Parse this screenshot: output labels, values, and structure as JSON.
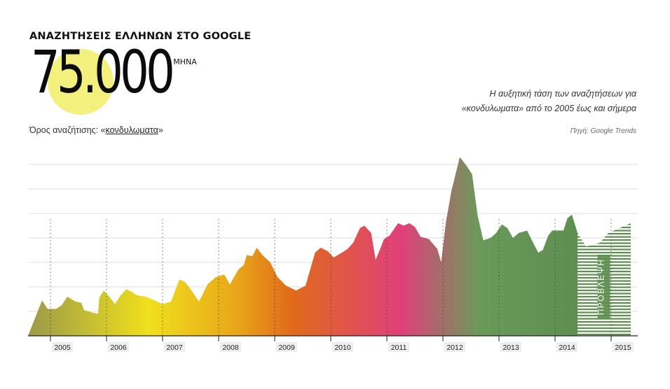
{
  "header": {
    "title": "ΑΝΑΖΗΤΗΣΕΙΣ ΕΛΛΗΝΩΝ ΣΤΟ GOOGLE",
    "big_number": "75.000",
    "unit": "/ ΜΗΝΑ",
    "search_prefix": "Όρος αναζήτισης: «",
    "search_term": "κονδυλωματα",
    "search_suffix": "»"
  },
  "description": {
    "line1": "Η αυξητική τάση των αναζητήσεων για",
    "line2": "«κονδυλωματα» από το 2005 έως και σήμερα",
    "source": "Πηγή: Google Trends"
  },
  "chart_data": {
    "type": "area",
    "x_unit": "year",
    "y_unit": "relative search interest",
    "ylim": [
      0,
      100
    ],
    "grid": true,
    "x_ticks": [
      "2005",
      "2006",
      "2007",
      "2008",
      "2009",
      "2010",
      "2011",
      "2012",
      "2013",
      "2014",
      "2015"
    ],
    "forecast_label": "ΠΡΟΒΛΕΨΗ",
    "forecast_start": 2014.4,
    "series": [
      {
        "values": [
          [
            2004.6,
            0
          ],
          [
            2004.85,
            14.5
          ],
          [
            2004.95,
            11
          ],
          [
            2005.1,
            11
          ],
          [
            2005.2,
            12.5
          ],
          [
            2005.3,
            16
          ],
          [
            2005.45,
            14
          ],
          [
            2005.55,
            13.5
          ],
          [
            2005.6,
            10.5
          ],
          [
            2005.75,
            9.5
          ],
          [
            2005.85,
            9
          ],
          [
            2005.87,
            15.5
          ],
          [
            2005.95,
            18.5
          ],
          [
            2006.05,
            16
          ],
          [
            2006.15,
            13
          ],
          [
            2006.25,
            16.5
          ],
          [
            2006.35,
            19
          ],
          [
            2006.45,
            18
          ],
          [
            2006.55,
            16.5
          ],
          [
            2006.7,
            16
          ],
          [
            2006.85,
            14.5
          ],
          [
            2007.0,
            13
          ],
          [
            2007.15,
            14
          ],
          [
            2007.3,
            23
          ],
          [
            2007.4,
            22
          ],
          [
            2007.5,
            19
          ],
          [
            2007.65,
            14
          ],
          [
            2007.8,
            21
          ],
          [
            2007.95,
            24
          ],
          [
            2008.1,
            25
          ],
          [
            2008.2,
            21
          ],
          [
            2008.35,
            27
          ],
          [
            2008.45,
            29
          ],
          [
            2008.5,
            33
          ],
          [
            2008.6,
            32.5
          ],
          [
            2008.68,
            36
          ],
          [
            2008.78,
            33
          ],
          [
            2008.92,
            30
          ],
          [
            2009.05,
            24
          ],
          [
            2009.2,
            20.5
          ],
          [
            2009.38,
            18.5
          ],
          [
            2009.55,
            20.5
          ],
          [
            2009.72,
            34
          ],
          [
            2009.82,
            36
          ],
          [
            2009.95,
            34.5
          ],
          [
            2010.05,
            32
          ],
          [
            2010.2,
            34
          ],
          [
            2010.3,
            35.5
          ],
          [
            2010.4,
            38
          ],
          [
            2010.52,
            44
          ],
          [
            2010.6,
            45
          ],
          [
            2010.72,
            42
          ],
          [
            2010.8,
            31
          ],
          [
            2010.95,
            39.5
          ],
          [
            2011.05,
            41
          ],
          [
            2011.2,
            46
          ],
          [
            2011.3,
            45
          ],
          [
            2011.4,
            46
          ],
          [
            2011.5,
            44.5
          ],
          [
            2011.6,
            40.5
          ],
          [
            2011.75,
            39.5
          ],
          [
            2011.9,
            35.5
          ],
          [
            2011.97,
            30
          ],
          [
            2012.05,
            46
          ],
          [
            2012.15,
            59
          ],
          [
            2012.3,
            73
          ],
          [
            2012.42,
            69.5
          ],
          [
            2012.52,
            66
          ],
          [
            2012.62,
            49
          ],
          [
            2012.72,
            39
          ],
          [
            2012.85,
            40
          ],
          [
            2012.95,
            42
          ],
          [
            2013.05,
            45.5
          ],
          [
            2013.15,
            44
          ],
          [
            2013.25,
            40
          ],
          [
            2013.35,
            42
          ],
          [
            2013.5,
            43
          ],
          [
            2013.62,
            37.5
          ],
          [
            2013.7,
            34
          ],
          [
            2013.78,
            35
          ],
          [
            2013.88,
            41
          ],
          [
            2013.95,
            43
          ],
          [
            2014.05,
            43
          ],
          [
            2014.15,
            43
          ],
          [
            2014.22,
            48
          ],
          [
            2014.3,
            49.5
          ],
          [
            2014.4,
            42
          ],
          [
            2014.55,
            36.5
          ],
          [
            2014.65,
            37
          ],
          [
            2014.8,
            38
          ],
          [
            2014.95,
            42
          ],
          [
            2015.1,
            43.5
          ],
          [
            2015.25,
            45
          ],
          [
            2015.35,
            46
          ]
        ]
      }
    ]
  },
  "colors": {
    "stops": [
      "#9a9a4a",
      "#f0e01c",
      "#e8a61a",
      "#e06a1a",
      "#e0407a",
      "#6a9a5a",
      "#5e8f50"
    ],
    "grid": "#dddddd",
    "highlight": "#f4f07e",
    "forecast_stripe": "#5e8f50",
    "axis": "#222222"
  }
}
